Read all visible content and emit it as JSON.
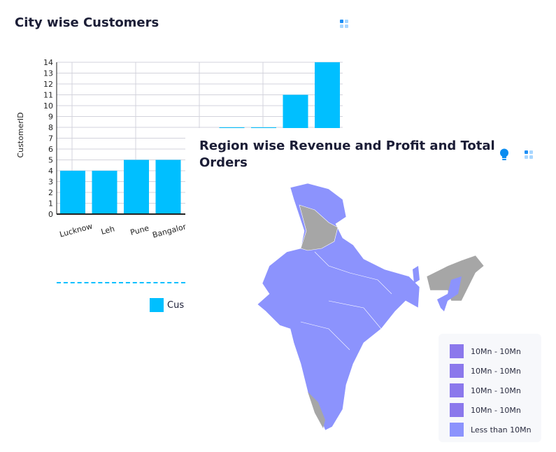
{
  "city_card": {
    "title": "City wise Customers",
    "legend_label": "Cus"
  },
  "chart_data": {
    "type": "bar",
    "title": "City wise Customers",
    "ylabel": "CustomerID",
    "xlabel": "",
    "ylim": [
      0,
      14
    ],
    "yticks": [
      0,
      1,
      2,
      3,
      4,
      5,
      6,
      7,
      8,
      9,
      10,
      11,
      12,
      13,
      14
    ],
    "categories": [
      "Lucknow",
      "Leh",
      "Pune",
      "Bangalore",
      "",
      "",
      "",
      "",
      ""
    ],
    "values": [
      4,
      4,
      5,
      5,
      null,
      8,
      8,
      11,
      14
    ],
    "color": "#00bfff",
    "grid": true
  },
  "region_card": {
    "title": "Region wise Revenue and Profit and Total Orders",
    "legend": [
      {
        "label": "10Mn - 10Mn",
        "color": "#8b78ec"
      },
      {
        "label": "10Mn - 10Mn",
        "color": "#8b78ec"
      },
      {
        "label": "10Mn - 10Mn",
        "color": "#8b78ec"
      },
      {
        "label": "10Mn - 10Mn",
        "color": "#8b78ec"
      },
      {
        "label": "Less than 10Mn",
        "color": "#8c93fd"
      }
    ],
    "map_colors": {
      "data": "#8c93fd",
      "no_data": "#a6a6a6"
    }
  }
}
